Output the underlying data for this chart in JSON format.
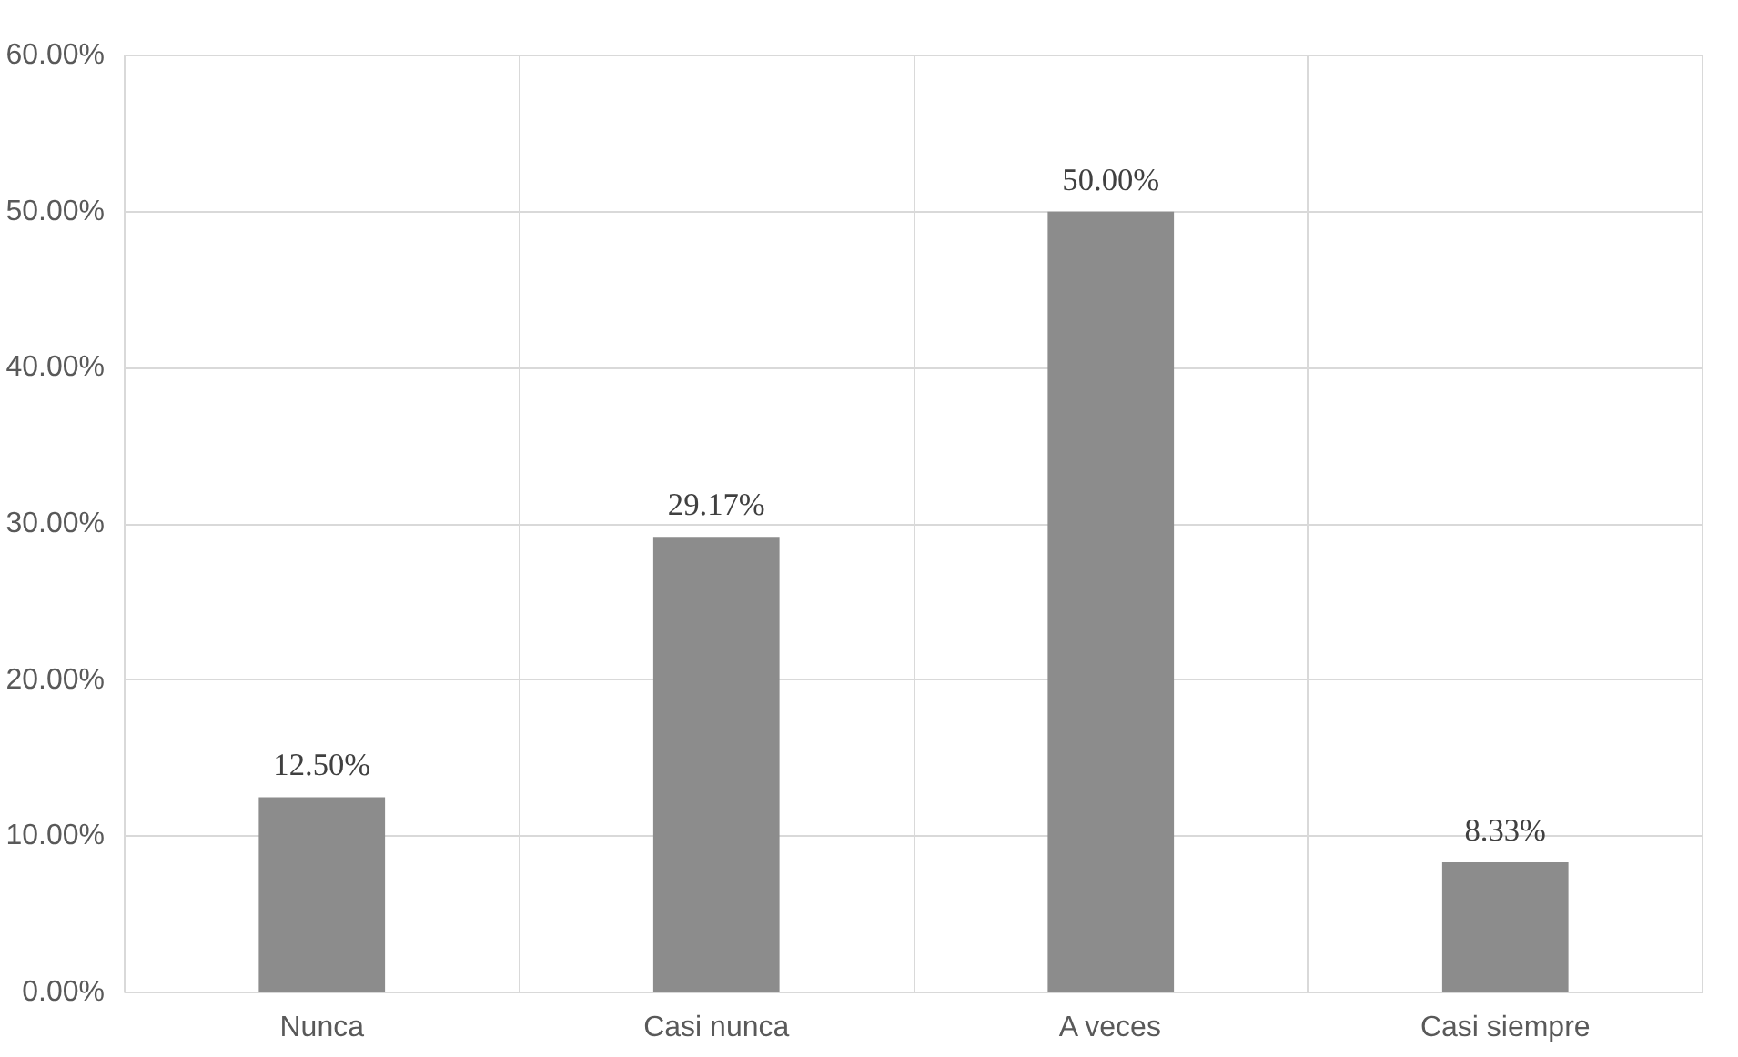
{
  "chart_data": {
    "type": "bar",
    "categories": [
      "Nunca",
      "Casi nunca",
      "A veces",
      "Casi siempre"
    ],
    "values": [
      12.5,
      29.17,
      50,
      8.33
    ],
    "value_labels": [
      "12.50%",
      "29.17%",
      "50.00%",
      "8.33%"
    ],
    "color": "#8c8c8c",
    "ylim": [
      0,
      60
    ],
    "yticks": [
      {
        "value": 0,
        "label": "0.00%"
      },
      {
        "value": 10,
        "label": "10.00%"
      },
      {
        "value": 20,
        "label": "20.00%"
      },
      {
        "value": 30,
        "label": "30.00%"
      },
      {
        "value": 40,
        "label": "40.00%"
      },
      {
        "value": 50,
        "label": "50.00%"
      },
      {
        "value": 60,
        "label": "60.00%"
      }
    ],
    "grid": true
  }
}
